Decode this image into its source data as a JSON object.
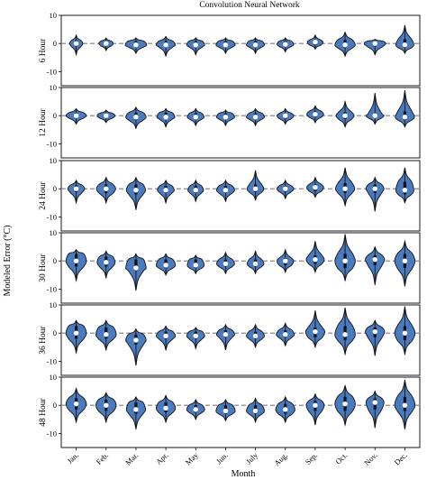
{
  "chart_data": {
    "type": "violin",
    "title": "Convolution Neural Network",
    "xlabel": "Month",
    "ylabel": "Modeled Error (°C)",
    "categories": [
      "Jan.",
      "Feb.",
      "Mar.",
      "Apr.",
      "May",
      "Jun.",
      "July",
      "Aug.",
      "Sep.",
      "Oct.",
      "Nov.",
      "Dec."
    ],
    "ylim": [
      -15,
      10
    ],
    "yticks": [
      -10,
      0,
      10
    ],
    "reference_line": 0,
    "colors": {
      "fill": "#4a7bbf",
      "stroke": "#111111",
      "median": "#ffffff",
      "reference": "#7f7f7f"
    },
    "panels": [
      {
        "label": "6 Hour",
        "series": [
          {
            "month": "Jan.",
            "min": -4.0,
            "q1": -1.0,
            "median": 0.0,
            "q3": 1.0,
            "max": 3.0,
            "width": 0.22
          },
          {
            "month": "Feb.",
            "min": -2.5,
            "q1": -0.8,
            "median": 0.0,
            "q3": 0.8,
            "max": 2.0,
            "width": 0.24
          },
          {
            "month": "Mar.",
            "min": -3.5,
            "q1": -1.2,
            "median": -0.5,
            "q3": 0.8,
            "max": 2.0,
            "width": 0.36
          },
          {
            "month": "Apr.",
            "min": -4.5,
            "q1": -1.2,
            "median": -0.5,
            "q3": 0.8,
            "max": 2.5,
            "width": 0.32
          },
          {
            "month": "May",
            "min": -4.0,
            "q1": -1.2,
            "median": -0.5,
            "q3": 0.8,
            "max": 2.0,
            "width": 0.3
          },
          {
            "month": "Jun.",
            "min": -3.5,
            "q1": -1.2,
            "median": -0.5,
            "q3": 0.8,
            "max": 2.0,
            "width": 0.32
          },
          {
            "month": "July",
            "min": -3.5,
            "q1": -1.2,
            "median": -0.5,
            "q3": 0.8,
            "max": 2.0,
            "width": 0.3
          },
          {
            "month": "Aug.",
            "min": -3.0,
            "q1": -1.0,
            "median": -0.3,
            "q3": 0.8,
            "max": 2.0,
            "width": 0.28
          },
          {
            "month": "Sep.",
            "min": -2.0,
            "q1": -0.5,
            "median": 0.5,
            "q3": 1.2,
            "max": 3.0,
            "width": 0.26
          },
          {
            "month": "Oct.",
            "min": -4.5,
            "q1": -1.5,
            "median": -0.5,
            "q3": 1.2,
            "max": 4.0,
            "width": 0.34
          },
          {
            "month": "Nov.",
            "min": -4.0,
            "q1": -1.0,
            "median": 0.0,
            "q3": 0.8,
            "max": 1.5,
            "width": 0.36
          },
          {
            "month": "Dec.",
            "min": -3.5,
            "q1": -1.5,
            "median": -0.5,
            "q3": 1.5,
            "max": 6.5,
            "width": 0.3
          }
        ]
      },
      {
        "label": "12 Hour",
        "series": [
          {
            "month": "Jan.",
            "min": -3.0,
            "q1": -0.8,
            "median": 0.0,
            "q3": 1.0,
            "max": 2.5,
            "width": 0.34
          },
          {
            "month": "Feb.",
            "min": -2.5,
            "q1": -0.8,
            "median": 0.0,
            "q3": 0.8,
            "max": 2.0,
            "width": 0.3
          },
          {
            "month": "Mar.",
            "min": -4.5,
            "q1": -1.5,
            "median": -0.5,
            "q3": 1.0,
            "max": 3.0,
            "width": 0.34
          },
          {
            "month": "Apr.",
            "min": -4.0,
            "q1": -1.2,
            "median": -0.5,
            "q3": 1.0,
            "max": 2.5,
            "width": 0.3
          },
          {
            "month": "May",
            "min": -3.5,
            "q1": -1.2,
            "median": -0.5,
            "q3": 0.8,
            "max": 2.5,
            "width": 0.28
          },
          {
            "month": "Jun.",
            "min": -3.5,
            "q1": -1.2,
            "median": -0.5,
            "q3": 0.8,
            "max": 2.0,
            "width": 0.3
          },
          {
            "month": "July",
            "min": -3.5,
            "q1": -1.2,
            "median": -0.5,
            "q3": 0.8,
            "max": 2.5,
            "width": 0.3
          },
          {
            "month": "Aug.",
            "min": -3.0,
            "q1": -1.0,
            "median": 0.0,
            "q3": 0.8,
            "max": 2.5,
            "width": 0.28
          },
          {
            "month": "Sep.",
            "min": -2.5,
            "q1": -0.5,
            "median": 0.5,
            "q3": 1.5,
            "max": 3.5,
            "width": 0.28
          },
          {
            "month": "Oct.",
            "min": -4.0,
            "q1": -1.2,
            "median": 0.0,
            "q3": 1.2,
            "max": 5.0,
            "width": 0.3
          },
          {
            "month": "Nov.",
            "min": -3.0,
            "q1": -0.8,
            "median": 0.0,
            "q3": 0.8,
            "max": 8.0,
            "width": 0.3
          },
          {
            "month": "Dec.",
            "min": -4.0,
            "q1": -1.5,
            "median": -0.5,
            "q3": 1.5,
            "max": 9.0,
            "width": 0.32
          }
        ]
      },
      {
        "label": "24 Hour",
        "series": [
          {
            "month": "Jan.",
            "min": -5.0,
            "q1": -1.2,
            "median": 0.0,
            "q3": 1.2,
            "max": 3.0,
            "width": 0.28
          },
          {
            "month": "Feb.",
            "min": -5.0,
            "q1": -1.5,
            "median": 0.0,
            "q3": 1.5,
            "max": 4.0,
            "width": 0.32
          },
          {
            "month": "Mar.",
            "min": -7.5,
            "q1": -2.0,
            "median": -0.5,
            "q3": 1.5,
            "max": 4.0,
            "width": 0.32
          },
          {
            "month": "Apr.",
            "min": -5.0,
            "q1": -1.5,
            "median": -0.5,
            "q3": 1.0,
            "max": 3.0,
            "width": 0.28
          },
          {
            "month": "May",
            "min": -4.5,
            "q1": -1.5,
            "median": -0.5,
            "q3": 1.0,
            "max": 3.0,
            "width": 0.26
          },
          {
            "month": "Jun.",
            "min": -4.5,
            "q1": -1.5,
            "median": -0.5,
            "q3": 1.0,
            "max": 3.0,
            "width": 0.3
          },
          {
            "month": "July",
            "min": -4.0,
            "q1": -1.2,
            "median": 0.0,
            "q3": 1.5,
            "max": 6.5,
            "width": 0.28
          },
          {
            "month": "Aug.",
            "min": -3.5,
            "q1": -1.0,
            "median": 0.0,
            "q3": 1.0,
            "max": 3.0,
            "width": 0.28
          },
          {
            "month": "Sep.",
            "min": -3.0,
            "q1": -0.8,
            "median": 0.5,
            "q3": 1.5,
            "max": 4.0,
            "width": 0.28
          },
          {
            "month": "Oct.",
            "min": -6.0,
            "q1": -1.5,
            "median": 0.0,
            "q3": 2.0,
            "max": 7.5,
            "width": 0.32
          },
          {
            "month": "Nov.",
            "min": -8.0,
            "q1": -1.5,
            "median": 0.0,
            "q3": 1.5,
            "max": 4.0,
            "width": 0.3
          },
          {
            "month": "Dec.",
            "min": -5.0,
            "q1": -2.0,
            "median": -0.5,
            "q3": 2.5,
            "max": 7.5,
            "width": 0.3
          }
        ]
      },
      {
        "label": "30 Hour",
        "series": [
          {
            "month": "Jan.",
            "min": -7.0,
            "q1": -2.0,
            "median": 0.0,
            "q3": 2.5,
            "max": 4.0,
            "width": 0.34
          },
          {
            "month": "Feb.",
            "min": -6.0,
            "q1": -2.0,
            "median": -0.5,
            "q3": 1.5,
            "max": 3.5,
            "width": 0.3
          },
          {
            "month": "Mar.",
            "min": -10.5,
            "q1": -3.5,
            "median": -2.5,
            "q3": 0.5,
            "max": 2.5,
            "width": 0.34
          },
          {
            "month": "Apr.",
            "min": -5.0,
            "q1": -2.5,
            "median": -1.5,
            "q3": 0.5,
            "max": 2.5,
            "width": 0.32
          },
          {
            "month": "May",
            "min": -4.5,
            "q1": -2.5,
            "median": -1.5,
            "q3": 0.5,
            "max": 2.0,
            "width": 0.28
          },
          {
            "month": "Jun.",
            "min": -4.5,
            "q1": -2.0,
            "median": -1.0,
            "q3": 0.5,
            "max": 3.0,
            "width": 0.3
          },
          {
            "month": "July",
            "min": -4.5,
            "q1": -2.0,
            "median": -1.0,
            "q3": 0.5,
            "max": 3.5,
            "width": 0.28
          },
          {
            "month": "Aug.",
            "min": -4.0,
            "q1": -1.5,
            "median": 0.0,
            "q3": 1.0,
            "max": 4.0,
            "width": 0.28
          },
          {
            "month": "Sep.",
            "min": -4.0,
            "q1": -1.0,
            "median": 0.5,
            "q3": 2.0,
            "max": 7.0,
            "width": 0.3
          },
          {
            "month": "Oct.",
            "min": -7.0,
            "q1": -2.5,
            "median": 0.0,
            "q3": 2.5,
            "max": 9.5,
            "width": 0.34
          },
          {
            "month": "Nov.",
            "min": -8.5,
            "q1": -1.5,
            "median": 0.5,
            "q3": 2.0,
            "max": 5.0,
            "width": 0.32
          },
          {
            "month": "Dec.",
            "min": -9.0,
            "q1": -2.5,
            "median": 0.0,
            "q3": 2.5,
            "max": 7.0,
            "width": 0.34
          }
        ]
      },
      {
        "label": "36 Hour",
        "series": [
          {
            "month": "Jan.",
            "min": -7.0,
            "q1": -2.0,
            "median": 0.0,
            "q3": 2.5,
            "max": 4.5,
            "width": 0.34
          },
          {
            "month": "Feb.",
            "min": -6.0,
            "q1": -2.0,
            "median": -0.5,
            "q3": 2.0,
            "max": 4.5,
            "width": 0.34
          },
          {
            "month": "Mar.",
            "min": -11.5,
            "q1": -4.0,
            "median": -2.5,
            "q3": -0.5,
            "max": 1.5,
            "width": 0.34
          },
          {
            "month": "Apr.",
            "min": -6.0,
            "q1": -2.0,
            "median": -1.0,
            "q3": 0.5,
            "max": 2.5,
            "width": 0.32
          },
          {
            "month": "May",
            "min": -5.5,
            "q1": -2.0,
            "median": -1.0,
            "q3": 0.5,
            "max": 2.0,
            "width": 0.3
          },
          {
            "month": "Jun.",
            "min": -6.0,
            "q1": -1.5,
            "median": -0.5,
            "q3": 1.0,
            "max": 3.0,
            "width": 0.3
          },
          {
            "month": "July",
            "min": -5.0,
            "q1": -2.0,
            "median": -1.0,
            "q3": 0.5,
            "max": 3.0,
            "width": 0.3
          },
          {
            "month": "Aug.",
            "min": -4.5,
            "q1": -1.5,
            "median": -0.5,
            "q3": 1.0,
            "max": 3.5,
            "width": 0.3
          },
          {
            "month": "Sep.",
            "min": -5.0,
            "q1": -1.5,
            "median": 0.5,
            "q3": 2.0,
            "max": 8.0,
            "width": 0.32
          },
          {
            "month": "Oct.",
            "min": -7.5,
            "q1": -2.5,
            "median": -0.5,
            "q3": 2.5,
            "max": 9.0,
            "width": 0.34
          },
          {
            "month": "Nov.",
            "min": -8.0,
            "q1": -1.5,
            "median": 0.5,
            "q3": 2.0,
            "max": 4.5,
            "width": 0.32
          },
          {
            "month": "Dec.",
            "min": -7.5,
            "q1": -2.5,
            "median": 0.0,
            "q3": 2.5,
            "max": 9.5,
            "width": 0.34
          }
        ]
      },
      {
        "label": "48 Hour",
        "series": [
          {
            "month": "Jan.",
            "min": -6.0,
            "q1": -1.5,
            "median": 0.5,
            "q3": 2.5,
            "max": 6.0,
            "width": 0.34
          },
          {
            "month": "Feb.",
            "min": -6.0,
            "q1": -2.0,
            "median": 0.0,
            "q3": 2.0,
            "max": 4.5,
            "width": 0.34
          },
          {
            "month": "Mar.",
            "min": -8.5,
            "q1": -3.0,
            "median": -1.5,
            "q3": 1.0,
            "max": 3.0,
            "width": 0.32
          },
          {
            "month": "Apr.",
            "min": -6.0,
            "q1": -2.5,
            "median": -1.0,
            "q3": 1.0,
            "max": 3.5,
            "width": 0.32
          },
          {
            "month": "May",
            "min": -5.0,
            "q1": -2.5,
            "median": -1.5,
            "q3": 0.0,
            "max": 2.0,
            "width": 0.3
          },
          {
            "month": "Jun.",
            "min": -5.5,
            "q1": -3.0,
            "median": -2.0,
            "q3": 0.0,
            "max": 2.0,
            "width": 0.32
          },
          {
            "month": "July",
            "min": -6.0,
            "q1": -3.0,
            "median": -2.0,
            "q3": 0.0,
            "max": 2.5,
            "width": 0.3
          },
          {
            "month": "Aug.",
            "min": -6.0,
            "q1": -3.0,
            "median": -1.5,
            "q3": 0.5,
            "max": 3.0,
            "width": 0.32
          },
          {
            "month": "Sep.",
            "min": -7.0,
            "q1": -2.0,
            "median": 0.0,
            "q3": 1.5,
            "max": 4.0,
            "width": 0.3
          },
          {
            "month": "Oct.",
            "min": -7.0,
            "q1": -2.0,
            "median": 0.5,
            "q3": 3.0,
            "max": 7.0,
            "width": 0.34
          },
          {
            "month": "Nov.",
            "min": -8.0,
            "q1": -1.5,
            "median": 1.0,
            "q3": 2.5,
            "max": 5.0,
            "width": 0.3
          },
          {
            "month": "Dec.",
            "min": -8.5,
            "q1": -2.0,
            "median": 0.0,
            "q3": 3.0,
            "max": 9.0,
            "width": 0.34
          }
        ]
      }
    ]
  }
}
